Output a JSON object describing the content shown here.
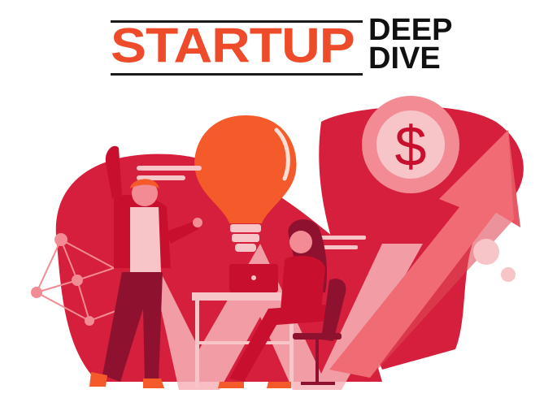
{
  "logo": {
    "word_main": "STARTUP",
    "word_sub_1": "DEEP",
    "word_sub_2": "DIVE",
    "brand_color": "#ee4b2b",
    "text_color": "#111111"
  },
  "illustration": {
    "currency_symbol": "$",
    "palette": {
      "primary_red": "#d51f3c",
      "dark_red": "#9e1630",
      "pink": "#f28b94",
      "light_pink": "#f7c4c8",
      "bulb_orange": "#f55a2a"
    },
    "icons": [
      "lightbulb-icon",
      "dollar-coin-icon",
      "growth-arrow-icon",
      "network-icon",
      "laptop-icon"
    ]
  }
}
